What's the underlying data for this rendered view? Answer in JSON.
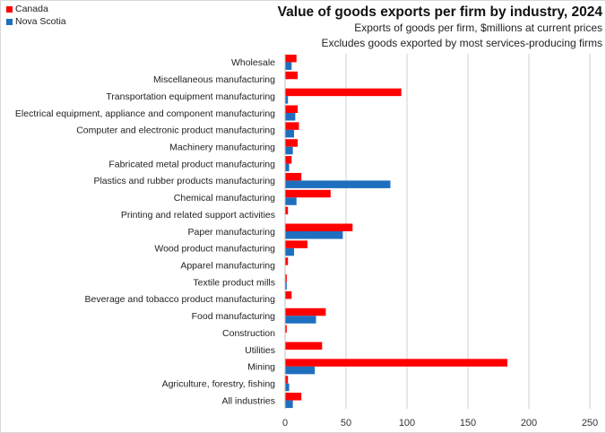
{
  "chart_data": {
    "type": "bar",
    "orientation": "horizontal",
    "title": "Value of goods exports per firm by industry, 2024",
    "subtitles": [
      "Exports of goods per firm, $millions at current prices",
      "Excludes goods exported by most services-producing firms"
    ],
    "xlabel": "",
    "ylabel": "",
    "xlim": [
      0,
      250
    ],
    "xticks": [
      0,
      50,
      100,
      150,
      200,
      250
    ],
    "grid": true,
    "legend_position": "top-left",
    "categories": [
      "Wholesale",
      "Miscellaneous manufacturing",
      "Transportation equipment manufacturing",
      "Electrical equipment, appliance and component manufacturing",
      "Computer and electronic product manufacturing",
      "Machinery manufacturing",
      "Fabricated metal product manufacturing",
      "Plastics and rubber products manufacturing",
      "Chemical manufacturing",
      "Printing and related support activities",
      "Paper manufacturing",
      "Wood product manufacturing",
      "Apparel manufacturing",
      "Textile product mills",
      "Beverage and tobacco product manufacturing",
      "Food manufacturing",
      "Construction",
      "Utilities",
      "Mining",
      "Agriculture, forestry, fishing",
      "All industries"
    ],
    "series": [
      {
        "name": "Canada",
        "color": "#ff0000",
        "values": [
          9,
          10,
          95,
          10,
          11,
          10,
          5,
          13,
          37,
          2,
          55,
          18,
          2,
          1,
          5,
          33,
          1,
          30,
          182,
          2,
          13
        ]
      },
      {
        "name": "Nova Scotia",
        "color": "#1f6fbf",
        "values": [
          5,
          0,
          2,
          8,
          7,
          6,
          3,
          86,
          9,
          0,
          47,
          7,
          0,
          1,
          0,
          25,
          0,
          0,
          24,
          3,
          6
        ]
      }
    ]
  },
  "colors": {
    "gridline": "#d0d0d0",
    "axis": "#bfbfbf"
  }
}
